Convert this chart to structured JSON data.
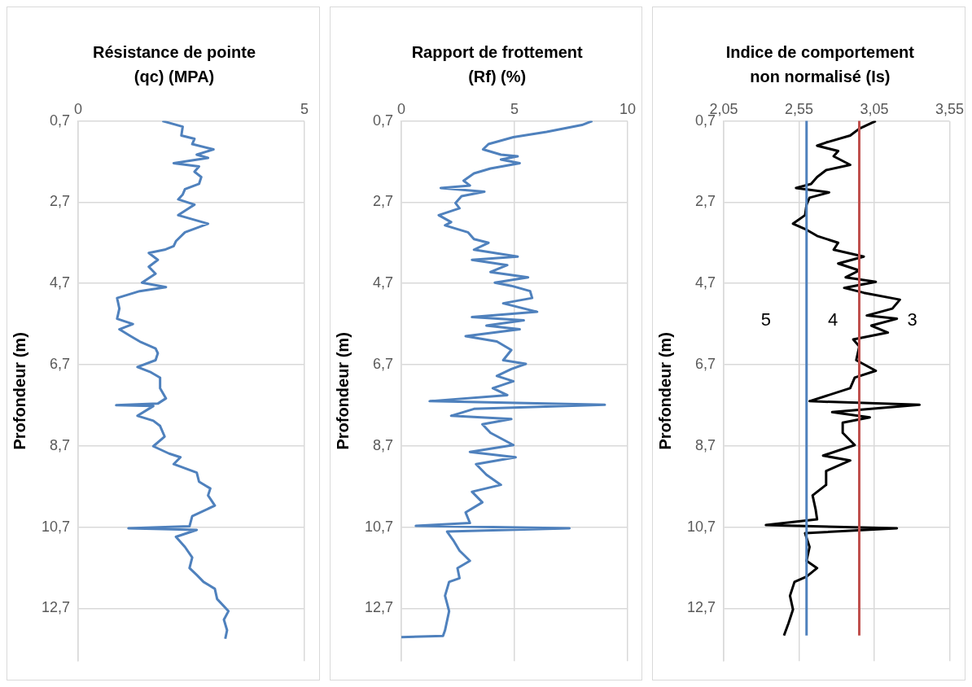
{
  "chart_data": [
    {
      "type": "line",
      "title": "Résistance de  pointe (qc) (MPA)",
      "ylabel": "Profondeur (m)",
      "xlim": [
        0,
        5
      ],
      "xticks": [
        0,
        5
      ],
      "ylim": [
        14,
        0.7
      ],
      "yticks": [
        {
          "value": 0.7,
          "label": "0,7"
        },
        {
          "value": 2.7,
          "label": "2,7"
        },
        {
          "value": 4.7,
          "label": "4,7"
        },
        {
          "value": 6.7,
          "label": "6,7"
        },
        {
          "value": 8.7,
          "label": "8,7"
        },
        {
          "value": 10.7,
          "label": "10,7"
        },
        {
          "value": 12.7,
          "label": "12,7"
        }
      ],
      "grid": true,
      "legend": false,
      "series": [
        {
          "color": "#4f81bd",
          "x": [
            1.86,
            2.31,
            2.28,
            2.57,
            2.52,
            2.99,
            2.62,
            2.87,
            2.11,
            2.67,
            2.57,
            2.72,
            2.67,
            2.36,
            2.31,
            2.21,
            2.57,
            2.21,
            2.87,
            2.36,
            2.16,
            2.11,
            1.91,
            1.56,
            1.76,
            1.56,
            1.71,
            1.41,
            1.94,
            1.36,
            0.86,
            0.91,
            0.86,
            1.21,
            0.91,
            1.16,
            1.36,
            1.71,
            1.76,
            1.71,
            1.31,
            1.61,
            1.81,
            1.81,
            1.94,
            1.76,
            0.84,
            1.66,
            1.31,
            1.66,
            1.81,
            1.91,
            1.66,
            2.01,
            2.26,
            2.11,
            2.62,
            2.67,
            2.92,
            2.87,
            3.02,
            2.52,
            2.46,
            1.11,
            2.62,
            2.16,
            2.36,
            2.52,
            2.46,
            2.62,
            2.77,
            3.02,
            3.07,
            3.32,
            3.22,
            3.29,
            3.25
          ],
          "values": [
            0.7,
            0.84,
            1.06,
            1.14,
            1.27,
            1.4,
            1.53,
            1.61,
            1.74,
            1.82,
            1.95,
            2.08,
            2.25,
            2.38,
            2.51,
            2.63,
            2.76,
            3.02,
            3.23,
            3.44,
            3.66,
            3.78,
            3.87,
            3.95,
            4.12,
            4.29,
            4.46,
            4.68,
            4.79,
            4.89,
            5.06,
            5.32,
            5.57,
            5.7,
            5.83,
            6.0,
            6.13,
            6.3,
            6.42,
            6.59,
            6.76,
            6.89,
            7.02,
            7.28,
            7.53,
            7.66,
            7.7,
            7.72,
            7.96,
            8.08,
            8.21,
            8.47,
            8.71,
            8.89,
            8.98,
            9.15,
            9.36,
            9.58,
            9.75,
            9.92,
            10.17,
            10.43,
            10.68,
            10.73,
            10.77,
            10.94,
            11.19,
            11.45,
            11.71,
            11.88,
            12.05,
            12.22,
            12.47,
            12.77,
            12.98,
            13.24,
            13.45
          ]
        }
      ]
    },
    {
      "type": "line",
      "title": "Rapport de frottement (Rf) (%)",
      "ylabel": "Profondeur (m)",
      "xlim": [
        0,
        10
      ],
      "xticks": [
        0,
        5,
        10
      ],
      "ylim": [
        14,
        0.7
      ],
      "yticks": [
        {
          "value": 0.7,
          "label": "0,7"
        },
        {
          "value": 2.7,
          "label": "2,7"
        },
        {
          "value": 4.7,
          "label": "4,7"
        },
        {
          "value": 6.7,
          "label": "6,7"
        },
        {
          "value": 8.7,
          "label": "8,7"
        },
        {
          "value": 10.7,
          "label": "10,7"
        },
        {
          "value": 12.7,
          "label": "12,7"
        }
      ],
      "grid": true,
      "legend": false,
      "series": [
        {
          "color": "#4f81bd",
          "x": [
            8.44,
            7.98,
            6.42,
            4.95,
            3.85,
            3.61,
            4.4,
            5.14,
            4.4,
            5.23,
            3.94,
            3.21,
            2.75,
            3.03,
            1.74,
            3.67,
            2.66,
            2.39,
            2.57,
            1.65,
            2.2,
            1.93,
            2.94,
            3.21,
            3.85,
            3.21,
            5.14,
            3.12,
            4.68,
            3.94,
            5.6,
            4.13,
            4.86,
            5.69,
            5.78,
            4.5,
            6.0,
            3.12,
            5.41,
            3.76,
            5.23,
            2.84,
            4.22,
            4.86,
            4.5,
            5.5,
            4.86,
            4.22,
            4.95,
            4.04,
            4.68,
            1.25,
            8.99,
            3.21,
            2.2,
            4.86,
            3.58,
            3.94,
            4.95,
            3.03,
            5.05,
            3.3,
            3.76,
            4.4,
            3.12,
            3.58,
            2.84,
            3.03,
            0.64,
            7.43,
            2.02,
            2.29,
            2.57,
            3.03,
            2.48,
            2.57,
            2.11,
            1.93,
            2.11,
            1.93,
            1.84,
            0
          ],
          "values": [
            0.7,
            0.8,
            0.97,
            1.1,
            1.27,
            1.4,
            1.53,
            1.57,
            1.65,
            1.74,
            1.87,
            1.99,
            2.17,
            2.29,
            2.35,
            2.44,
            2.55,
            2.72,
            2.85,
            3.02,
            3.19,
            3.27,
            3.44,
            3.61,
            3.7,
            3.87,
            4.04,
            4.12,
            4.25,
            4.42,
            4.55,
            4.68,
            4.76,
            4.89,
            5.06,
            5.19,
            5.4,
            5.53,
            5.61,
            5.74,
            5.83,
            6.0,
            6.13,
            6.34,
            6.59,
            6.68,
            6.81,
            6.98,
            7.11,
            7.28,
            7.45,
            7.6,
            7.69,
            7.79,
            7.96,
            8.04,
            8.17,
            8.38,
            8.68,
            8.85,
            8.98,
            9.15,
            9.41,
            9.66,
            9.83,
            10.09,
            10.34,
            10.6,
            10.67,
            10.73,
            10.81,
            11.02,
            11.28,
            11.53,
            11.71,
            11.96,
            12.05,
            12.39,
            12.77,
            13.24,
            13.38,
            13.41
          ]
        }
      ]
    },
    {
      "type": "line",
      "title": "Indice de comportement non normalisé (Is)",
      "ylabel": "Profondeur (m)",
      "xlim": [
        2.05,
        3.55
      ],
      "xticks": [
        {
          "value": 2.05,
          "label": "2,05"
        },
        {
          "value": 2.55,
          "label": "2,55"
        },
        {
          "value": 3.05,
          "label": "3,05"
        },
        {
          "value": 3.55,
          "label": "3,55"
        }
      ],
      "ylim": [
        14,
        0.7
      ],
      "yticks": [
        {
          "value": 0.7,
          "label": "0,7"
        },
        {
          "value": 2.7,
          "label": "2,7"
        },
        {
          "value": 4.7,
          "label": "4,7"
        },
        {
          "value": 6.7,
          "label": "6,7"
        },
        {
          "value": 8.7,
          "label": "8,7"
        },
        {
          "value": 10.7,
          "label": "10,7"
        },
        {
          "value": 12.7,
          "label": "12,7"
        }
      ],
      "grid": true,
      "legend": false,
      "ref_lines": [
        {
          "axis": "x",
          "value": 2.6,
          "color": "#4f81bd"
        },
        {
          "axis": "x",
          "value": 2.95,
          "color": "#c0504d"
        }
      ],
      "annotations": [
        "5",
        "4",
        "3"
      ],
      "series": [
        {
          "color": "#000000",
          "x": [
            3.06,
            2.95,
            2.89,
            2.73,
            2.67,
            2.81,
            2.78,
            2.89,
            2.73,
            2.67,
            2.63,
            2.53,
            2.75,
            2.62,
            2.6,
            2.59,
            2.51,
            2.59,
            2.67,
            2.81,
            2.78,
            2.98,
            2.81,
            2.95,
            2.86,
            3.06,
            2.85,
            2.98,
            3.22,
            3.17,
            3.0,
            3.2,
            3.03,
            3.14,
            2.91,
            2.95,
            2.93,
            3.06,
            2.92,
            2.89,
            2.62,
            3.35,
            2.77,
            3.02,
            2.84,
            2.84,
            2.92,
            2.71,
            2.89,
            2.73,
            2.73,
            2.64,
            2.66,
            2.67,
            2.33,
            3.2,
            2.59,
            2.62,
            2.6,
            2.67,
            2.6,
            2.52,
            2.49,
            2.51,
            2.48,
            2.45
          ],
          "values": [
            0.7,
            0.89,
            1.06,
            1.23,
            1.31,
            1.44,
            1.57,
            1.78,
            1.91,
            2.08,
            2.25,
            2.35,
            2.46,
            2.59,
            2.76,
            3.02,
            3.23,
            3.36,
            3.53,
            3.7,
            3.87,
            4.04,
            4.21,
            4.38,
            4.55,
            4.66,
            4.81,
            4.93,
            5.1,
            5.32,
            5.49,
            5.57,
            5.74,
            5.91,
            6.08,
            6.25,
            6.59,
            6.85,
            7.02,
            7.28,
            7.6,
            7.69,
            7.87,
            8.0,
            8.13,
            8.38,
            8.68,
            8.94,
            9.06,
            9.32,
            9.66,
            9.92,
            10.26,
            10.51,
            10.65,
            10.73,
            10.85,
            11.19,
            11.53,
            11.71,
            11.92,
            12.05,
            12.39,
            12.73,
            13.07,
            13.37
          ]
        }
      ]
    }
  ]
}
